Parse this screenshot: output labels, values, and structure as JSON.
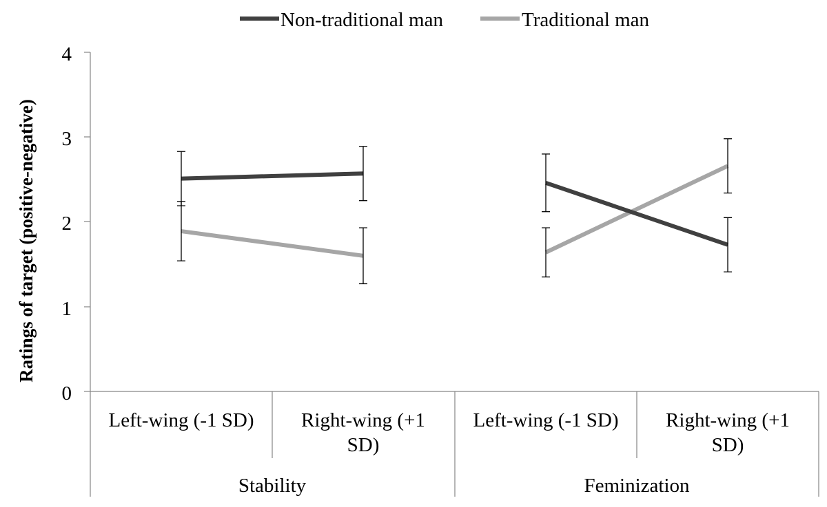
{
  "chart_data": {
    "type": "line",
    "ylabel": "Ratings of target (positive-negative)",
    "ylim": [
      0,
      4
    ],
    "yticks": [
      "0",
      "1",
      "2",
      "3",
      "4"
    ],
    "groups": [
      {
        "name": "Stability",
        "categories": [
          "Left-wing (-1 SD)",
          "Right-wing (+1 SD)"
        ]
      },
      {
        "name": "Feminization",
        "categories": [
          "Left-wing (-1 SD)",
          "Right-wing (+1 SD)"
        ]
      }
    ],
    "category_label_lines": [
      [
        "Left-wing (-1 SD)"
      ],
      [
        "Right-wing (+1",
        "SD)"
      ],
      [
        "Left-wing (-1 SD)"
      ],
      [
        "Right-wing (+1",
        "SD)"
      ]
    ],
    "legend": {
      "position": "top",
      "entries": [
        "Non-traditional man",
        "Traditional man"
      ]
    },
    "series": [
      {
        "name": "Non-traditional man",
        "color": "#404040",
        "values": [
          2.51,
          2.57,
          2.46,
          1.73
        ],
        "errors": [
          [
            2.19,
            2.83
          ],
          [
            2.25,
            2.89
          ],
          [
            2.12,
            2.8
          ],
          [
            1.41,
            2.05
          ]
        ]
      },
      {
        "name": "Traditional man",
        "color": "#a6a6a6",
        "values": [
          1.89,
          1.6,
          1.64,
          2.66
        ],
        "errors": [
          [
            1.54,
            2.24
          ],
          [
            1.27,
            1.93
          ],
          [
            1.35,
            1.93
          ],
          [
            2.34,
            2.98
          ]
        ]
      }
    ]
  }
}
